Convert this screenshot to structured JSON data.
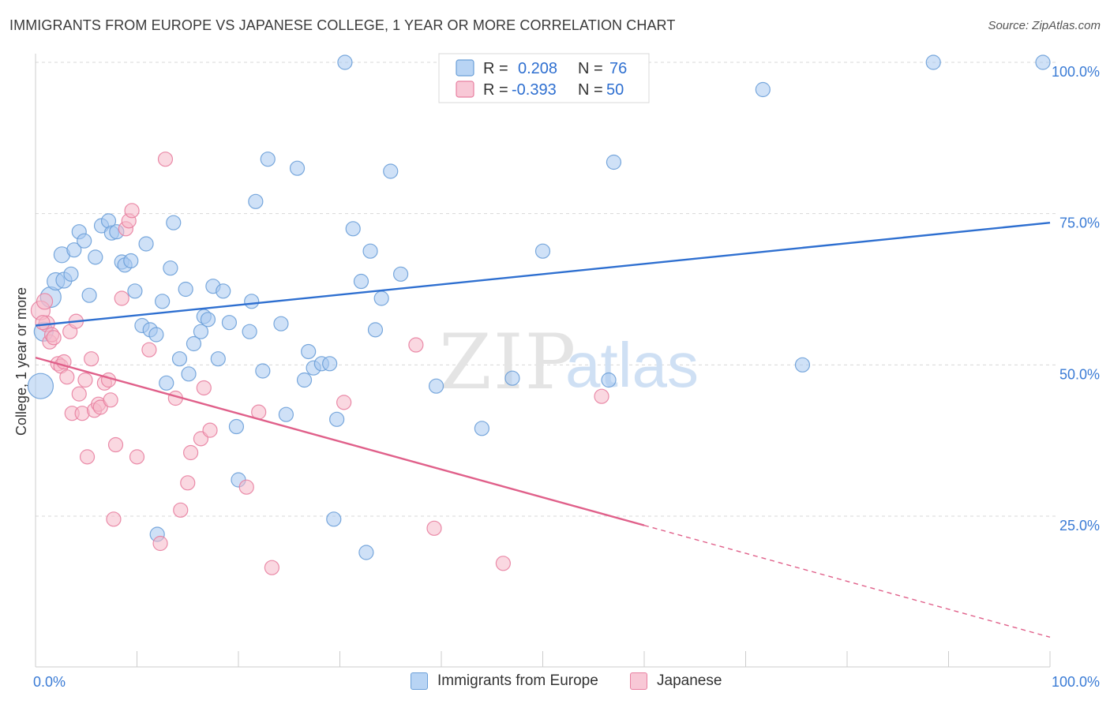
{
  "title": "IMMIGRANTS FROM EUROPE VS JAPANESE COLLEGE, 1 YEAR OR MORE CORRELATION CHART",
  "source": "Source: ZipAtlas.com",
  "watermark": {
    "zip": "ZIP",
    "atlas": "atlas"
  },
  "colors": {
    "blue_fill": "#a8c8f0",
    "blue_stroke": "#6a9fd8",
    "blue_line": "#2e6fd0",
    "pink_fill": "#f5b8c8",
    "pink_stroke": "#e87fa0",
    "pink_line": "#e0608a",
    "axis_text": "#3a7bd5",
    "grid": "#d8d8d8"
  },
  "legend_stats": {
    "row1": {
      "r_label": "R =",
      "r_value": "0.208",
      "n_label": "N =",
      "n_value": "76"
    },
    "row2": {
      "r_label": "R =",
      "r_value": "-0.393",
      "n_label": "N =",
      "n_value": "50"
    }
  },
  "chart_data": {
    "type": "scatter",
    "title": "IMMIGRANTS FROM EUROPE VS JAPANESE COLLEGE, 1 YEAR OR MORE CORRELATION CHART",
    "xlabel": "",
    "ylabel": "College, 1 year or more",
    "xlim": [
      0,
      100
    ],
    "ylim": [
      0,
      104
    ],
    "x_tick_labels": [
      "0.0%",
      "100.0%"
    ],
    "y_tick_labels": [
      "25.0%",
      "50.0%",
      "75.0%",
      "100.0%"
    ],
    "y_ticks": [
      25,
      50,
      75,
      100
    ],
    "grid": true,
    "legend_position": "top-center",
    "series": [
      {
        "name": "Immigrants from Europe",
        "color": "#a8c8f0",
        "trend": {
          "x0": 0,
          "y0": 56.5,
          "x1": 100,
          "y1": 73.5,
          "dashed_from": null
        },
        "points": [
          [
            0.5,
            46.5,
            16
          ],
          [
            0.8,
            55.5,
            12
          ],
          [
            1.5,
            61.2,
            13
          ],
          [
            2.0,
            63.8,
            11
          ],
          [
            2.6,
            68.2,
            10
          ],
          [
            2.8,
            64.0,
            10
          ],
          [
            3.5,
            65.0,
            9
          ],
          [
            3.8,
            69.0,
            9
          ],
          [
            4.3,
            72.0,
            9
          ],
          [
            4.8,
            70.5,
            9
          ],
          [
            5.3,
            61.5,
            9
          ],
          [
            5.9,
            67.8,
            9
          ],
          [
            6.5,
            73.0,
            9
          ],
          [
            7.2,
            73.8,
            9
          ],
          [
            7.5,
            71.8,
            9
          ],
          [
            8.0,
            72.0,
            9
          ],
          [
            8.5,
            67.0,
            9
          ],
          [
            8.8,
            66.5,
            9
          ],
          [
            9.4,
            67.2,
            9
          ],
          [
            9.8,
            62.2,
            9
          ],
          [
            10.5,
            56.5,
            9
          ],
          [
            10.9,
            70.0,
            9
          ],
          [
            11.3,
            55.8,
            9
          ],
          [
            11.9,
            55.0,
            9
          ],
          [
            12.5,
            60.5,
            9
          ],
          [
            12.9,
            47.0,
            9
          ],
          [
            13.3,
            66.0,
            9
          ],
          [
            13.6,
            73.5,
            9
          ],
          [
            14.2,
            51.0,
            9
          ],
          [
            14.8,
            62.5,
            9
          ],
          [
            15.1,
            48.5,
            9
          ],
          [
            15.6,
            53.5,
            9
          ],
          [
            16.3,
            55.5,
            9
          ],
          [
            16.6,
            58.0,
            9
          ],
          [
            17.0,
            57.5,
            9
          ],
          [
            17.5,
            63.0,
            9
          ],
          [
            18.0,
            51.0,
            9
          ],
          [
            18.5,
            62.2,
            9
          ],
          [
            19.1,
            57.0,
            9
          ],
          [
            19.8,
            39.8,
            9
          ],
          [
            21.1,
            55.5,
            9
          ],
          [
            21.3,
            60.5,
            9
          ],
          [
            21.7,
            77.0,
            9
          ],
          [
            22.4,
            49.0,
            9
          ],
          [
            22.9,
            84.0,
            9
          ],
          [
            24.2,
            56.8,
            9
          ],
          [
            24.7,
            41.8,
            9
          ],
          [
            25.8,
            82.5,
            9
          ],
          [
            26.5,
            47.5,
            9
          ],
          [
            26.9,
            52.2,
            9
          ],
          [
            27.4,
            49.5,
            9
          ],
          [
            28.2,
            50.2,
            9
          ],
          [
            29.0,
            50.2,
            9
          ],
          [
            29.4,
            24.5,
            9
          ],
          [
            29.7,
            41.0,
            9
          ],
          [
            30.5,
            100.0,
            9
          ],
          [
            31.3,
            72.5,
            9
          ],
          [
            32.1,
            63.8,
            9
          ],
          [
            32.6,
            19.0,
            9
          ],
          [
            33.0,
            68.8,
            9
          ],
          [
            33.5,
            55.8,
            9
          ],
          [
            34.1,
            61.0,
            9
          ],
          [
            35.0,
            82.0,
            9
          ],
          [
            36.0,
            65.0,
            9
          ],
          [
            20.0,
            31.0,
            9
          ],
          [
            39.5,
            46.5,
            9
          ],
          [
            44.0,
            39.5,
            9
          ],
          [
            47.0,
            47.8,
            9
          ],
          [
            50.0,
            68.8,
            9
          ],
          [
            56.5,
            47.5,
            9
          ],
          [
            57.0,
            83.5,
            9
          ],
          [
            71.7,
            95.5,
            9
          ],
          [
            75.6,
            50.0,
            9
          ],
          [
            88.5,
            100.0,
            9
          ],
          [
            99.3,
            100.0,
            9
          ],
          [
            12.0,
            22.0,
            9
          ]
        ]
      },
      {
        "name": "Japanese",
        "color": "#f5b8c8",
        "trend": {
          "x0": 0,
          "y0": 51.2,
          "x1": 100,
          "y1": 5.0,
          "dashed_from": 60
        },
        "points": [
          [
            0.5,
            59.0,
            12
          ],
          [
            0.9,
            60.5,
            10
          ],
          [
            1.1,
            56.8,
            10
          ],
          [
            1.4,
            53.8,
            9
          ],
          [
            1.6,
            55.0,
            9
          ],
          [
            1.8,
            54.5,
            9
          ],
          [
            2.2,
            50.2,
            9
          ],
          [
            2.5,
            49.8,
            9
          ],
          [
            2.8,
            50.5,
            9
          ],
          [
            3.1,
            48.0,
            9
          ],
          [
            3.4,
            55.5,
            9
          ],
          [
            3.6,
            42.0,
            9
          ],
          [
            4.0,
            57.2,
            9
          ],
          [
            4.3,
            45.2,
            9
          ],
          [
            4.6,
            42.0,
            9
          ],
          [
            4.9,
            47.5,
            9
          ],
          [
            5.1,
            34.8,
            9
          ],
          [
            5.5,
            51.0,
            9
          ],
          [
            5.8,
            42.5,
            9
          ],
          [
            6.2,
            43.5,
            9
          ],
          [
            6.4,
            43.0,
            9
          ],
          [
            6.8,
            47.0,
            9
          ],
          [
            7.2,
            47.5,
            9
          ],
          [
            7.4,
            44.2,
            9
          ],
          [
            7.7,
            24.5,
            9
          ],
          [
            7.9,
            36.8,
            9
          ],
          [
            8.5,
            61.0,
            9
          ],
          [
            8.9,
            72.5,
            9
          ],
          [
            9.2,
            73.8,
            9
          ],
          [
            9.5,
            75.5,
            9
          ],
          [
            10.0,
            34.8,
            9
          ],
          [
            11.2,
            52.5,
            9
          ],
          [
            12.3,
            20.5,
            9
          ],
          [
            12.8,
            84.0,
            9
          ],
          [
            13.8,
            44.5,
            9
          ],
          [
            14.3,
            26.0,
            9
          ],
          [
            15.0,
            30.5,
            9
          ],
          [
            15.3,
            35.5,
            9
          ],
          [
            16.3,
            37.8,
            9
          ],
          [
            16.6,
            46.2,
            9
          ],
          [
            17.2,
            39.2,
            9
          ],
          [
            20.8,
            29.8,
            9
          ],
          [
            22.0,
            42.2,
            9
          ],
          [
            23.3,
            16.5,
            9
          ],
          [
            30.4,
            43.8,
            9
          ],
          [
            37.5,
            53.3,
            9
          ],
          [
            39.3,
            23.0,
            9
          ],
          [
            46.1,
            17.2,
            9
          ],
          [
            55.8,
            44.8,
            9
          ],
          [
            0.7,
            57.0,
            9
          ]
        ]
      }
    ]
  },
  "bottom_legend": {
    "item1": "Immigrants from Europe",
    "item2": "Japanese"
  }
}
